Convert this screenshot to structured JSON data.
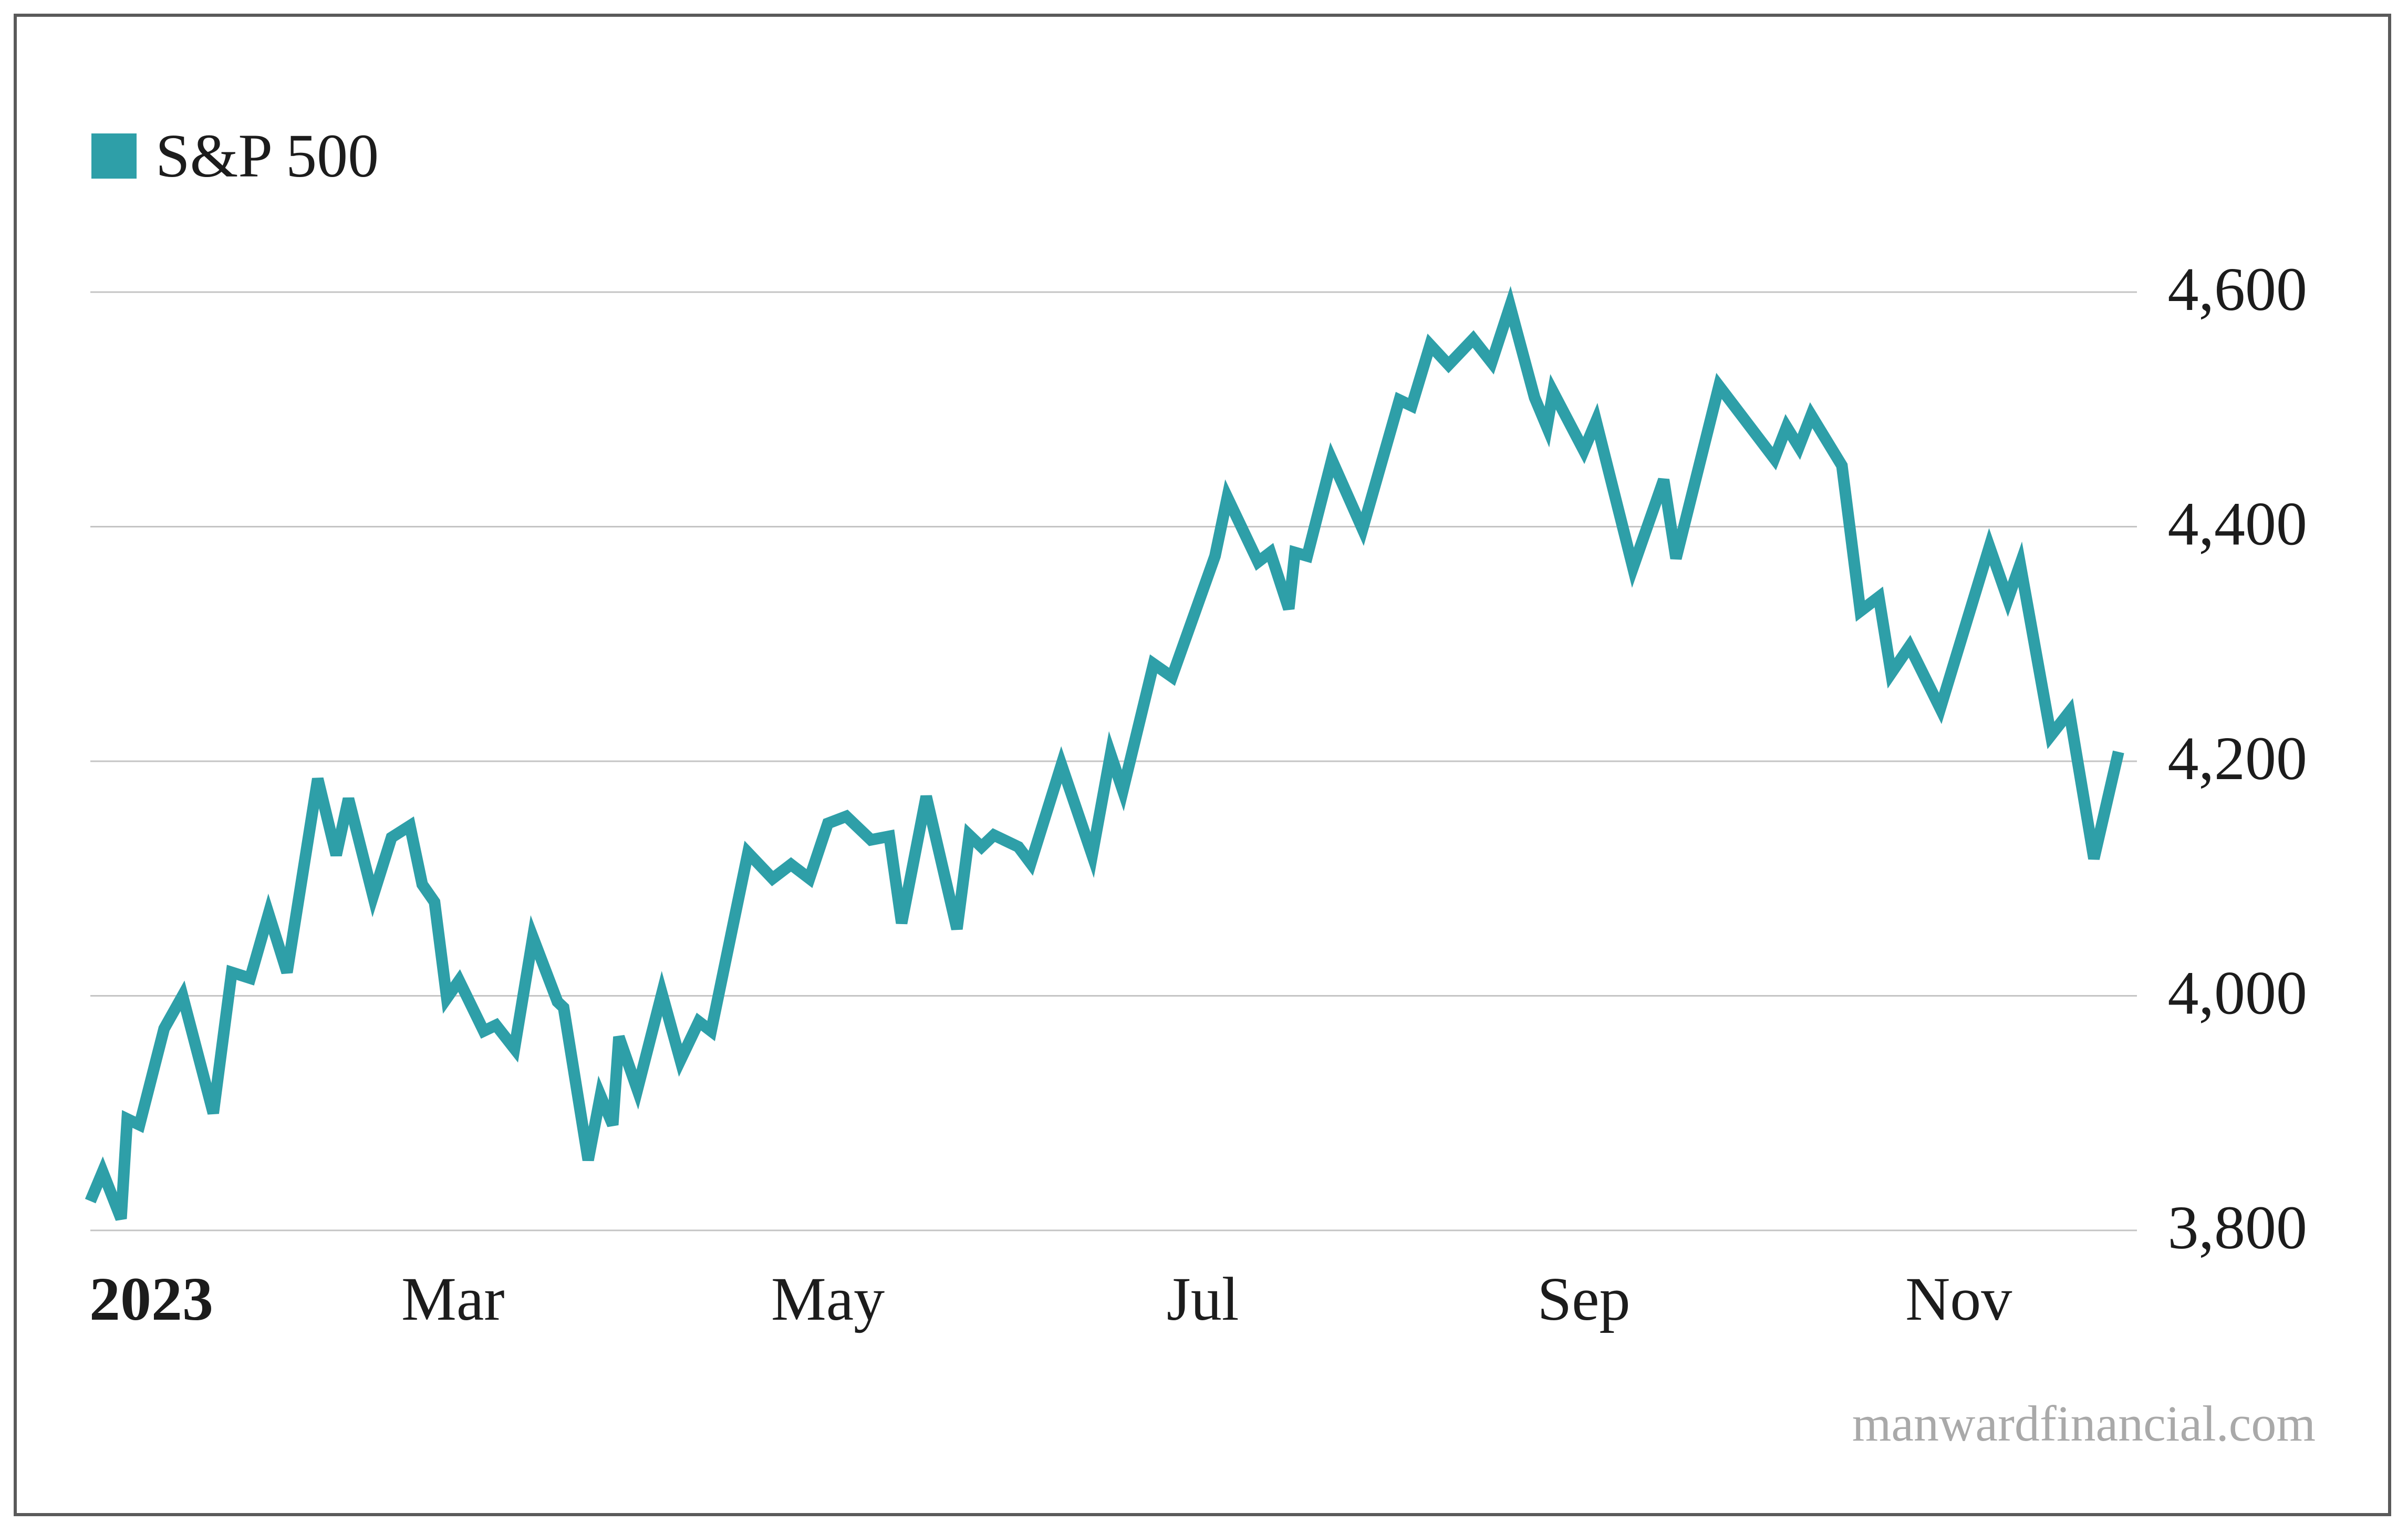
{
  "legend": {
    "label": "S&P 500",
    "color": "#2e9fa8"
  },
  "watermark": "manwardfinancial.com",
  "chart_data": {
    "type": "line",
    "title": "",
    "xlabel": "",
    "ylabel": "",
    "ylim": [
      3800,
      4600
    ],
    "xlim": [
      1,
      315
    ],
    "grid": true,
    "legend_position": "top-left",
    "y_ticks": [
      {
        "value": 4600,
        "label": "4,600"
      },
      {
        "value": 4400,
        "label": "4,400"
      },
      {
        "value": 4200,
        "label": "4,200"
      },
      {
        "value": 4000,
        "label": "4,000"
      },
      {
        "value": 3800,
        "label": "3,800"
      }
    ],
    "x_ticks": [
      {
        "value": 1,
        "label": "2023",
        "bold": true
      },
      {
        "value": 60,
        "label": "Mar",
        "bold": false
      },
      {
        "value": 121,
        "label": "May",
        "bold": false
      },
      {
        "value": 182,
        "label": "Jul",
        "bold": false
      },
      {
        "value": 244,
        "label": "Sep",
        "bold": false
      },
      {
        "value": 305,
        "label": "Nov",
        "bold": false
      }
    ],
    "series": [
      {
        "name": "S&P 500",
        "color": "#2e9fa8",
        "points": [
          [
            1,
            3825
          ],
          [
            3,
            3850
          ],
          [
            6,
            3810
          ],
          [
            7,
            3895
          ],
          [
            9,
            3890
          ],
          [
            13,
            3972
          ],
          [
            16,
            4000
          ],
          [
            21,
            3900
          ],
          [
            24,
            4020
          ],
          [
            27,
            4015
          ],
          [
            30,
            4070
          ],
          [
            33,
            4020
          ],
          [
            38,
            4185
          ],
          [
            41,
            4120
          ],
          [
            43,
            4168
          ],
          [
            47,
            4085
          ],
          [
            50,
            4135
          ],
          [
            53,
            4145
          ],
          [
            55,
            4095
          ],
          [
            57,
            4080
          ],
          [
            59,
            3998
          ],
          [
            61,
            4013
          ],
          [
            65,
            3970
          ],
          [
            67,
            3975
          ],
          [
            70,
            3955
          ],
          [
            73,
            4050
          ],
          [
            77,
            3995
          ],
          [
            78,
            3990
          ],
          [
            82,
            3860
          ],
          [
            84,
            3915
          ],
          [
            86,
            3890
          ],
          [
            87,
            3965
          ],
          [
            90,
            3920
          ],
          [
            94,
            4002
          ],
          [
            97,
            3945
          ],
          [
            100,
            3978
          ],
          [
            102,
            3970
          ],
          [
            108,
            4122
          ],
          [
            112,
            4100
          ],
          [
            115,
            4112
          ],
          [
            118,
            4100
          ],
          [
            121,
            4147
          ],
          [
            124,
            4153
          ],
          [
            128,
            4133
          ],
          [
            131,
            4136
          ],
          [
            133,
            4062
          ],
          [
            137,
            4170
          ],
          [
            142,
            4057
          ],
          [
            144,
            4137
          ],
          [
            146,
            4127
          ],
          [
            148,
            4137
          ],
          [
            152,
            4127
          ],
          [
            154,
            4113
          ],
          [
            159,
            4197
          ],
          [
            164,
            4120
          ],
          [
            167,
            4206
          ],
          [
            169,
            4175
          ],
          [
            174,
            4283
          ],
          [
            177,
            4272
          ],
          [
            184,
            4375
          ],
          [
            186,
            4425
          ],
          [
            191,
            4370
          ],
          [
            193,
            4378
          ],
          [
            196,
            4330
          ],
          [
            197,
            4378
          ],
          [
            199,
            4375
          ],
          [
            203,
            4457
          ],
          [
            208,
            4398
          ],
          [
            214,
            4508
          ],
          [
            216,
            4503
          ],
          [
            219,
            4555
          ],
          [
            222,
            4538
          ],
          [
            226,
            4560
          ],
          [
            229,
            4540
          ],
          [
            232,
            4588
          ],
          [
            236,
            4510
          ],
          [
            238,
            4485
          ],
          [
            239,
            4515
          ],
          [
            244,
            4465
          ],
          [
            246,
            4490
          ],
          [
            252,
            4365
          ],
          [
            257,
            4440
          ],
          [
            259,
            4373
          ],
          [
            266,
            4520
          ],
          [
            275,
            4458
          ],
          [
            277,
            4485
          ],
          [
            279,
            4468
          ],
          [
            281,
            4495
          ],
          [
            286,
            4452
          ],
          [
            289,
            4328
          ],
          [
            292,
            4340
          ],
          [
            294,
            4275
          ],
          [
            297,
            4298
          ],
          [
            302,
            4245
          ],
          [
            310,
            4383
          ],
          [
            313,
            4338
          ],
          [
            315,
            4368
          ],
          [
            320,
            4222
          ],
          [
            323,
            4242
          ],
          [
            327,
            4117
          ],
          [
            331,
            4208
          ]
        ]
      }
    ]
  }
}
